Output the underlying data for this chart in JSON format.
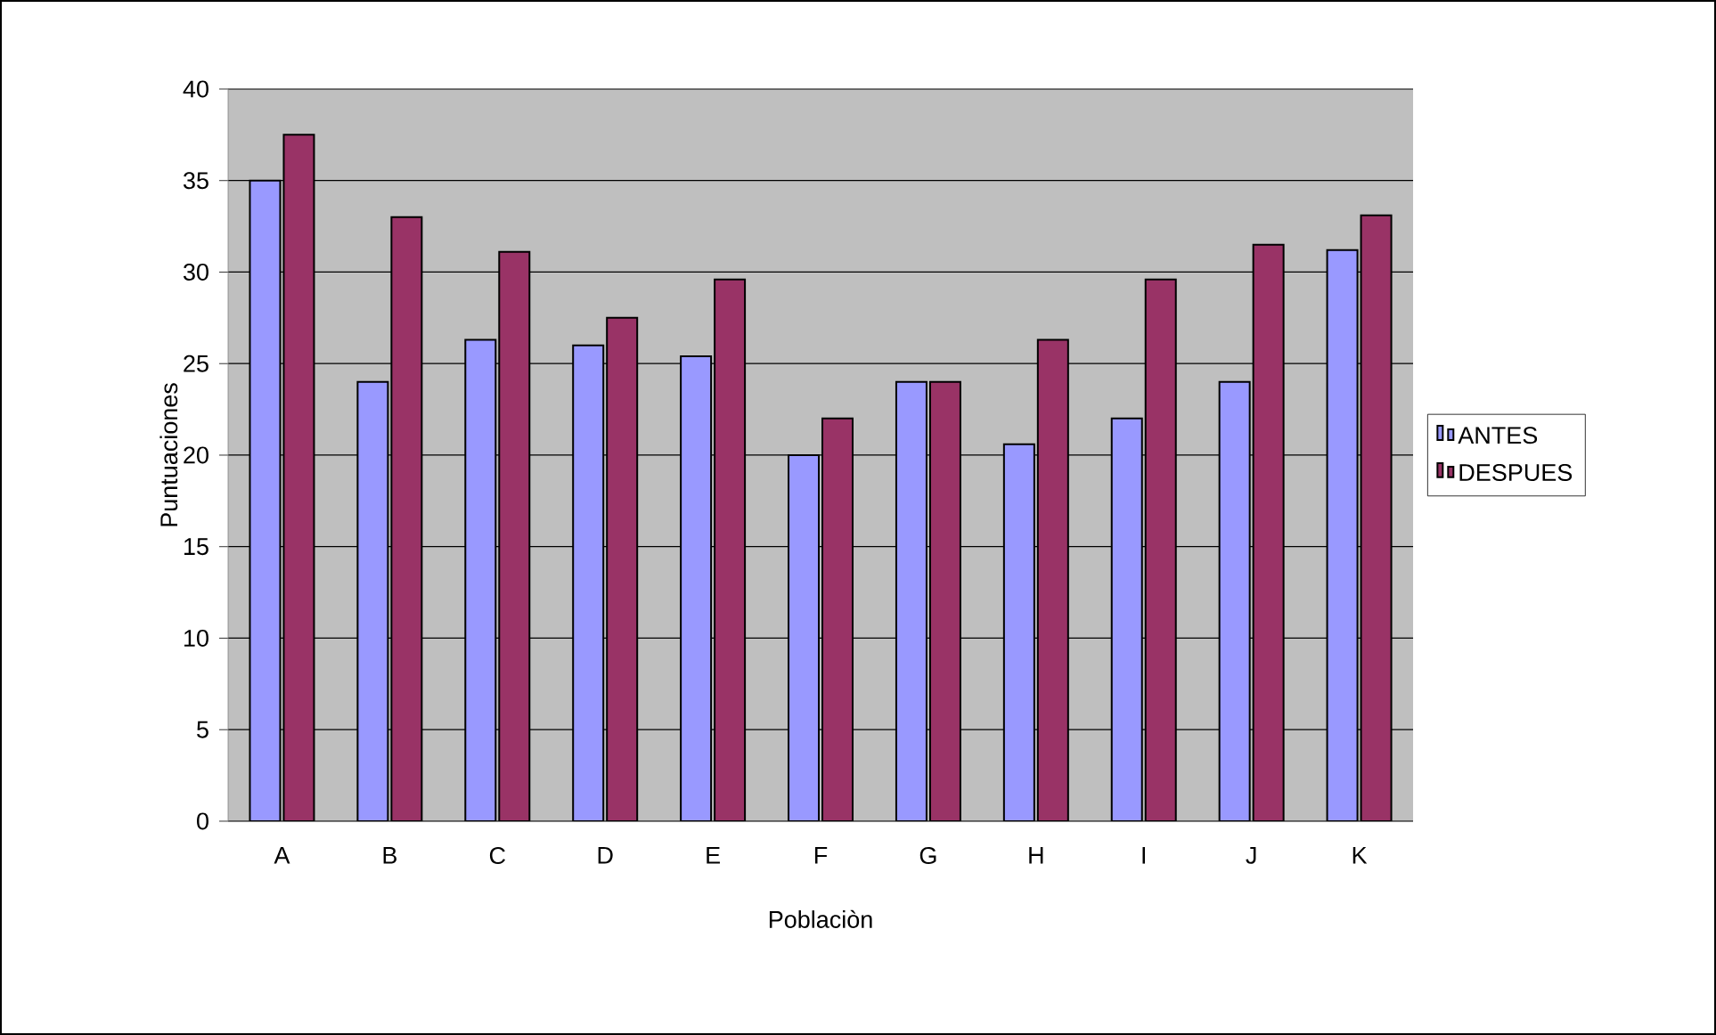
{
  "chart_data": {
    "type": "bar",
    "xlabel": "Poblaciòn",
    "ylabel": "Puntuaciones",
    "categories": [
      "A",
      "B",
      "C",
      "D",
      "E",
      "F",
      "G",
      "H",
      "I",
      "J",
      "K"
    ],
    "series": [
      {
        "name": "ANTES",
        "color": "#9999ff",
        "values": [
          35,
          24,
          26.3,
          26,
          25.4,
          20,
          24,
          20.6,
          22,
          24,
          31.2
        ]
      },
      {
        "name": "DESPUES",
        "color": "#993366",
        "values": [
          37.5,
          33,
          31.1,
          27.5,
          29.6,
          22,
          24,
          26.3,
          29.6,
          31.5,
          33.1
        ]
      }
    ],
    "ylim": [
      0,
      40
    ],
    "yticks": [
      0,
      5,
      10,
      15,
      20,
      25,
      30,
      35,
      40
    ],
    "grid": "y",
    "legend": "right"
  }
}
